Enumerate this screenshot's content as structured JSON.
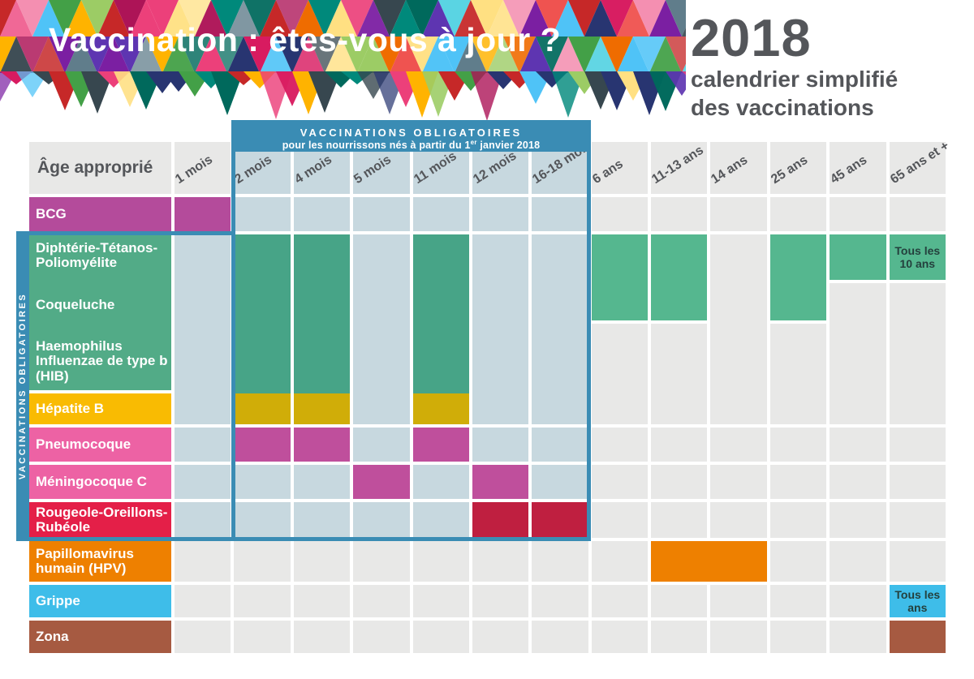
{
  "banner": {
    "title": "Vaccination : êtes-vous à jour ?"
  },
  "year_block": {
    "year": "2018",
    "line1": "calendrier simplifié",
    "line2": "des vaccinations"
  },
  "box": {
    "title": "VACCINATIONS OBLIGATOIRES",
    "subtitle_main": "pour les nourrissons nés à partir du 1",
    "subtitle_sup": "er",
    "subtitle_tail": " janvier 2018"
  },
  "sidebar": {
    "label": "VACCINATIONS  OBLIGATOIRES"
  },
  "colors": {
    "gray": "#e8e8e7",
    "tint": "#c7d8df",
    "bcg": "#b44b9b",
    "green": "#55b78f",
    "greenBox": "#47a487",
    "greenLabel": "#52ab87",
    "yellowLabel": "#f9bb02",
    "yellowBox": "#d0ad08",
    "pinkLabel": "#ed62a4",
    "magentaBox": "#bf4f9c",
    "redLabel": "#e41f48",
    "redBox": "#bf1f40",
    "orange": "#ee8000",
    "flu": "#3ebde9",
    "zona": "#a65a41",
    "boxBlue": "#3a8cb4",
    "headerText": "#54565a",
    "noteDark": "#24403d"
  },
  "table": {
    "corner": "Âge approprié",
    "columns": [
      {
        "label": "1 mois",
        "tint": false
      },
      {
        "label": "2 mois",
        "tint": true
      },
      {
        "label": "4 mois",
        "tint": true
      },
      {
        "label": "5 mois",
        "tint": true
      },
      {
        "label": "11 mois",
        "tint": true
      },
      {
        "label": "12 mois",
        "tint": true
      },
      {
        "label": "16-18 mois",
        "tint": true
      },
      {
        "label": "6 ans",
        "tint": false
      },
      {
        "label": "11-13 ans",
        "tint": false
      },
      {
        "label": "14 ans",
        "tint": false
      },
      {
        "label": "25 ans",
        "tint": false
      },
      {
        "label": "45 ans",
        "tint": false
      },
      {
        "label": "65 ans et +",
        "tint": false
      }
    ],
    "row_labels": [
      {
        "row": 2,
        "span": 1,
        "key": "bcg",
        "labels": [
          "BCG"
        ],
        "color": "#b44b9b"
      },
      {
        "row": 3,
        "span": 3,
        "key": "dtp-group",
        "labels": [
          "Diphtérie-Tétanos-Poliomyélite",
          "Coqueluche",
          "Haemophilus Influenzae de type b (HIB)"
        ],
        "color": "#52ab87"
      },
      {
        "row": 6,
        "span": 1,
        "key": "hepatite-b",
        "labels": [
          "Hépatite B"
        ],
        "color": "#f9bb02"
      },
      {
        "row": 7,
        "span": 1,
        "key": "pneumocoque",
        "labels": [
          "Pneumocoque"
        ],
        "color": "#ed62a4"
      },
      {
        "row": 8,
        "span": 1,
        "key": "meningocoque-c",
        "labels": [
          "Méningocoque C"
        ],
        "color": "#ed62a4"
      },
      {
        "row": 9,
        "span": 1,
        "key": "rougeole-oreillons-rubeole",
        "labels": [
          "Rougeole-Oreillons-Rubéole"
        ],
        "color": "#e41f48"
      },
      {
        "row": 10,
        "span": 1,
        "key": "papillomavirus-hpv",
        "labels": [
          "Papillomavirus humain (HPV)"
        ],
        "color": "#ee8000"
      },
      {
        "row": 11,
        "span": 1,
        "key": "grippe",
        "labels": [
          "Grippe"
        ],
        "color": "#3ebde9"
      },
      {
        "row": 12,
        "span": 1,
        "key": "zona",
        "labels": [
          "Zona"
        ],
        "color": "#a65a41"
      }
    ]
  },
  "cells": [
    {
      "r": 2,
      "c": 2,
      "k": "bcg"
    },
    {
      "r": 2,
      "c": 3,
      "k": "tint"
    },
    {
      "r": 2,
      "c": 4,
      "k": "tint"
    },
    {
      "r": 2,
      "c": 5,
      "k": "tint"
    },
    {
      "r": 2,
      "c": 6,
      "k": "tint"
    },
    {
      "r": 2,
      "c": 7,
      "k": "tint"
    },
    {
      "r": 2,
      "c": 8,
      "k": "tint"
    },
    {
      "r": 2,
      "c": 9,
      "k": "gray"
    },
    {
      "r": 2,
      "c": 10,
      "k": "gray"
    },
    {
      "r": 2,
      "c": 11,
      "k": "gray"
    },
    {
      "r": 2,
      "c": 12,
      "k": "gray"
    },
    {
      "r": 2,
      "c": 13,
      "k": "gray"
    },
    {
      "r": 2,
      "c": 14,
      "k": "gray"
    },
    {
      "r": 3,
      "c": 2,
      "rs": 4,
      "k": "tint"
    },
    {
      "r": 3,
      "c": 3,
      "rs": 3,
      "k": "greenBox",
      "bleed": true
    },
    {
      "r": 3,
      "c": 4,
      "rs": 3,
      "k": "greenBox",
      "bleed": true
    },
    {
      "r": 3,
      "c": 5,
      "rs": 4,
      "k": "tint"
    },
    {
      "r": 3,
      "c": 6,
      "rs": 3,
      "k": "greenBox",
      "bleed": true
    },
    {
      "r": 3,
      "c": 7,
      "rs": 4,
      "k": "tint"
    },
    {
      "r": 3,
      "c": 8,
      "rs": 4,
      "k": "tint"
    },
    {
      "r": 3,
      "c": 9,
      "rs": 2,
      "k": "green"
    },
    {
      "r": 3,
      "c": 10,
      "rs": 2,
      "k": "green"
    },
    {
      "r": 3,
      "c": 11,
      "rs": 4,
      "k": "gray"
    },
    {
      "r": 3,
      "c": 12,
      "rs": 2,
      "k": "green"
    },
    {
      "r": 3,
      "c": 13,
      "k": "green"
    },
    {
      "r": 3,
      "c": 14,
      "k": "green",
      "t": "Tous les 10 ans"
    },
    {
      "r": 4,
      "c": 13,
      "rs": 3,
      "k": "gray"
    },
    {
      "r": 4,
      "c": 14,
      "rs": 3,
      "k": "gray"
    },
    {
      "r": 5,
      "c": 9,
      "rs": 2,
      "k": "gray"
    },
    {
      "r": 5,
      "c": 10,
      "rs": 2,
      "k": "gray"
    },
    {
      "r": 5,
      "c": 12,
      "rs": 2,
      "k": "gray"
    },
    {
      "r": 6,
      "c": 3,
      "k": "yellowBox"
    },
    {
      "r": 6,
      "c": 4,
      "k": "yellowBox"
    },
    {
      "r": 6,
      "c": 6,
      "k": "yellowBox"
    },
    {
      "r": 7,
      "c": 2,
      "k": "tint"
    },
    {
      "r": 7,
      "c": 3,
      "k": "magentaBox"
    },
    {
      "r": 7,
      "c": 4,
      "k": "magentaBox"
    },
    {
      "r": 7,
      "c": 5,
      "k": "tint"
    },
    {
      "r": 7,
      "c": 6,
      "k": "magentaBox"
    },
    {
      "r": 7,
      "c": 7,
      "k": "tint"
    },
    {
      "r": 7,
      "c": 8,
      "k": "tint"
    },
    {
      "r": 7,
      "c": 9,
      "k": "gray"
    },
    {
      "r": 7,
      "c": 10,
      "k": "gray"
    },
    {
      "r": 7,
      "c": 11,
      "k": "gray"
    },
    {
      "r": 7,
      "c": 12,
      "k": "gray"
    },
    {
      "r": 7,
      "c": 13,
      "k": "gray"
    },
    {
      "r": 7,
      "c": 14,
      "k": "gray"
    },
    {
      "r": 8,
      "c": 2,
      "k": "tint"
    },
    {
      "r": 8,
      "c": 3,
      "k": "tint"
    },
    {
      "r": 8,
      "c": 4,
      "k": "tint"
    },
    {
      "r": 8,
      "c": 5,
      "k": "magentaBox"
    },
    {
      "r": 8,
      "c": 6,
      "k": "tint"
    },
    {
      "r": 8,
      "c": 7,
      "k": "magentaBox"
    },
    {
      "r": 8,
      "c": 8,
      "k": "tint"
    },
    {
      "r": 8,
      "c": 9,
      "k": "gray"
    },
    {
      "r": 8,
      "c": 10,
      "k": "gray"
    },
    {
      "r": 8,
      "c": 11,
      "k": "gray"
    },
    {
      "r": 8,
      "c": 12,
      "k": "gray"
    },
    {
      "r": 8,
      "c": 13,
      "k": "gray"
    },
    {
      "r": 8,
      "c": 14,
      "k": "gray"
    },
    {
      "r": 9,
      "c": 2,
      "k": "tint"
    },
    {
      "r": 9,
      "c": 3,
      "k": "tint"
    },
    {
      "r": 9,
      "c": 4,
      "k": "tint"
    },
    {
      "r": 9,
      "c": 5,
      "k": "tint"
    },
    {
      "r": 9,
      "c": 6,
      "k": "tint"
    },
    {
      "r": 9,
      "c": 7,
      "k": "redBox"
    },
    {
      "r": 9,
      "c": 8,
      "k": "redBox"
    },
    {
      "r": 9,
      "c": 9,
      "k": "gray"
    },
    {
      "r": 9,
      "c": 10,
      "k": "gray"
    },
    {
      "r": 9,
      "c": 11,
      "k": "gray"
    },
    {
      "r": 9,
      "c": 12,
      "k": "gray"
    },
    {
      "r": 9,
      "c": 13,
      "k": "gray"
    },
    {
      "r": 9,
      "c": 14,
      "k": "gray"
    },
    {
      "r": 10,
      "c": 2,
      "k": "gray"
    },
    {
      "r": 10,
      "c": 3,
      "k": "gray"
    },
    {
      "r": 10,
      "c": 4,
      "k": "gray"
    },
    {
      "r": 10,
      "c": 5,
      "k": "gray"
    },
    {
      "r": 10,
      "c": 6,
      "k": "gray"
    },
    {
      "r": 10,
      "c": 7,
      "k": "gray"
    },
    {
      "r": 10,
      "c": 8,
      "k": "gray"
    },
    {
      "r": 10,
      "c": 9,
      "k": "gray"
    },
    {
      "r": 10,
      "c": 10,
      "cs": 2,
      "k": "orange"
    },
    {
      "r": 10,
      "c": 12,
      "k": "gray"
    },
    {
      "r": 10,
      "c": 13,
      "k": "gray"
    },
    {
      "r": 10,
      "c": 14,
      "k": "gray"
    },
    {
      "r": 11,
      "c": 2,
      "k": "gray"
    },
    {
      "r": 11,
      "c": 3,
      "k": "gray"
    },
    {
      "r": 11,
      "c": 4,
      "k": "gray"
    },
    {
      "r": 11,
      "c": 5,
      "k": "gray"
    },
    {
      "r": 11,
      "c": 6,
      "k": "gray"
    },
    {
      "r": 11,
      "c": 7,
      "k": "gray"
    },
    {
      "r": 11,
      "c": 8,
      "k": "gray"
    },
    {
      "r": 11,
      "c": 9,
      "k": "gray"
    },
    {
      "r": 11,
      "c": 10,
      "k": "gray"
    },
    {
      "r": 11,
      "c": 11,
      "k": "gray"
    },
    {
      "r": 11,
      "c": 12,
      "k": "gray"
    },
    {
      "r": 11,
      "c": 13,
      "k": "gray"
    },
    {
      "r": 11,
      "c": 14,
      "k": "flu",
      "t": "Tous les ans"
    },
    {
      "r": 12,
      "c": 2,
      "k": "gray"
    },
    {
      "r": 12,
      "c": 3,
      "k": "gray"
    },
    {
      "r": 12,
      "c": 4,
      "k": "gray"
    },
    {
      "r": 12,
      "c": 5,
      "k": "gray"
    },
    {
      "r": 12,
      "c": 6,
      "k": "gray"
    },
    {
      "r": 12,
      "c": 7,
      "k": "gray"
    },
    {
      "r": 12,
      "c": 8,
      "k": "gray"
    },
    {
      "r": 12,
      "c": 9,
      "k": "gray"
    },
    {
      "r": 12,
      "c": 10,
      "k": "gray"
    },
    {
      "r": 12,
      "c": 11,
      "k": "gray"
    },
    {
      "r": 12,
      "c": 12,
      "k": "gray"
    },
    {
      "r": 12,
      "c": 13,
      "k": "gray"
    },
    {
      "r": 12,
      "c": 14,
      "k": "zona"
    }
  ],
  "mosaic": {
    "palette": [
      "#c62828",
      "#d81b60",
      "#ec407a",
      "#f48fb1",
      "#ad1457",
      "#7b1fa2",
      "#5e35b1",
      "#283571",
      "#00695c",
      "#00897b",
      "#43a047",
      "#9ccc65",
      "#ef6c00",
      "#ffb300",
      "#ffe082",
      "#ef5350",
      "#4fc3f7",
      "#607d8b",
      "#37474f",
      "#26c6da"
    ]
  },
  "chart_data": {
    "type": "table",
    "title": "Vaccination : êtes-vous à jour ? — 2018 calendrier simplifié des vaccinations",
    "columns": [
      "1 mois",
      "2 mois",
      "4 mois",
      "5 mois",
      "11 mois",
      "12 mois",
      "16-18 mois",
      "6 ans",
      "11-13 ans",
      "14 ans",
      "25 ans",
      "45 ans",
      "65 ans et +"
    ],
    "rows": [
      {
        "vaccine": "BCG",
        "doses": [
          "1 mois"
        ]
      },
      {
        "vaccine": "Diphtérie-Tétanos-Poliomyélite",
        "doses": [
          "2 mois",
          "4 mois",
          "11 mois",
          "6 ans",
          "11-13 ans",
          "25 ans",
          "45 ans",
          "65 ans et + (Tous les 10 ans)"
        ]
      },
      {
        "vaccine": "Coqueluche",
        "doses": [
          "2 mois",
          "4 mois",
          "11 mois",
          "6 ans",
          "11-13 ans",
          "25 ans"
        ]
      },
      {
        "vaccine": "Haemophilus Influenzae de type b (HIB)",
        "doses": [
          "2 mois",
          "4 mois",
          "11 mois"
        ]
      },
      {
        "vaccine": "Hépatite B",
        "doses": [
          "2 mois",
          "4 mois",
          "11 mois"
        ]
      },
      {
        "vaccine": "Pneumocoque",
        "doses": [
          "2 mois",
          "4 mois",
          "11 mois"
        ]
      },
      {
        "vaccine": "Méningocoque C",
        "doses": [
          "5 mois",
          "12 mois"
        ]
      },
      {
        "vaccine": "Rougeole-Oreillons-Rubéole",
        "doses": [
          "12 mois",
          "16-18 mois"
        ]
      },
      {
        "vaccine": "Papillomavirus humain (HPV)",
        "doses": [
          "11-13 ans",
          "14 ans"
        ]
      },
      {
        "vaccine": "Grippe",
        "doses": [
          "65 ans et + (Tous les ans)"
        ]
      },
      {
        "vaccine": "Zona",
        "doses": [
          "65 ans et +"
        ]
      }
    ],
    "annotations": [
      "VACCINATIONS OBLIGATOIRES pour les nourrissons nés à partir du 1er janvier 2018 (colonnes 2 mois à 16-18 mois)"
    ],
    "legend_position": "none",
    "grid": true
  }
}
